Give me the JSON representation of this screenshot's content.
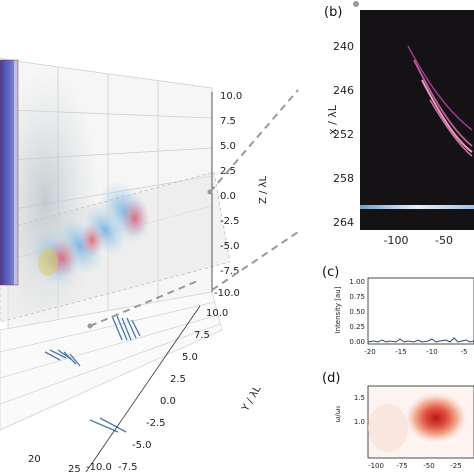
{
  "panel_3d": {
    "z_label": "Z / λL",
    "z_ticks": [
      "10.0",
      "7.5",
      "5.0",
      "2.5",
      "0.0",
      "-2.5",
      "-5.0",
      "-7.5",
      "-10.0"
    ],
    "y_label": "Y / λL",
    "y_ticks": [
      "10.0",
      "7.5",
      "5.0",
      "2.5",
      "0.0",
      "-2.5",
      "-5.0",
      "-7.5",
      "-10.0"
    ],
    "x_ticks": [
      "20",
      "25"
    ]
  },
  "panel_b": {
    "label": "(b)",
    "ylabel": "x / λL",
    "y_ticks": [
      "240",
      "246",
      "252",
      "258",
      "264"
    ],
    "x_ticks": [
      "-100",
      "-50"
    ]
  },
  "panel_c": {
    "label": "(c)",
    "ylabel": "Intensity [au]",
    "y_ticks": [
      "1.00",
      "0.75",
      "0.50",
      "0.25",
      "0.00"
    ],
    "x_ticks": [
      "-20",
      "-15",
      "-10",
      "-5"
    ]
  },
  "panel_d": {
    "label": "(d)",
    "ylabel": "ω/ω₀",
    "y_ticks": [
      "1.5",
      "1.0"
    ],
    "x_ticks": [
      "-100",
      "-75",
      "-50",
      "-25"
    ]
  },
  "colors": {
    "background": "#ffffff",
    "heatmap_bg": "#141214",
    "dash_line": "#9a9a9a",
    "trace": "#2a4a7a"
  }
}
